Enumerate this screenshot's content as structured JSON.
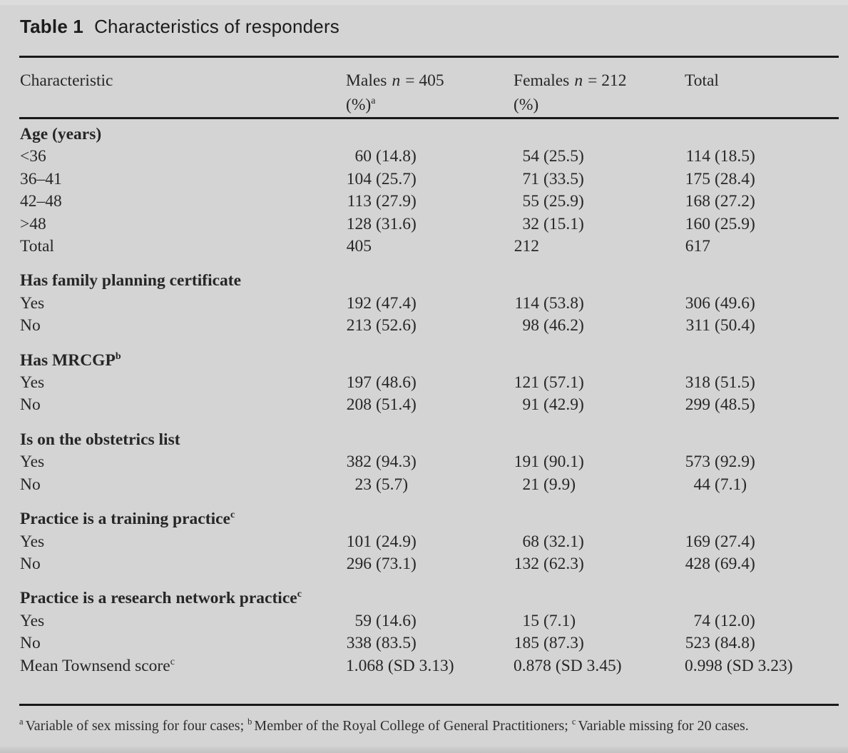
{
  "colors": {
    "background": "#d4d4d4",
    "text": "#262626",
    "rule": "#191919"
  },
  "title": {
    "label": "Table 1",
    "text": "Characteristics of responders"
  },
  "table": {
    "columns": {
      "characteristic": {
        "label": "Characteristic"
      },
      "males": {
        "name": "Males",
        "var": "n",
        "value": "= 405",
        "unit": "(%)",
        "sup": "a"
      },
      "females": {
        "name": "Females",
        "var": "n",
        "value": "= 212",
        "unit": "(%)",
        "sup": ""
      },
      "total": {
        "label": "Total"
      }
    },
    "sections": [
      {
        "heading": "Age (years)",
        "sup": "",
        "rows": [
          {
            "label": "<36",
            "sup": "",
            "cells": [
              {
                "n": "60",
                "pct": "(14.8)"
              },
              {
                "n": "54",
                "pct": "(25.5)"
              },
              {
                "n": "114",
                "pct": "(18.5)"
              }
            ]
          },
          {
            "label": "36–41",
            "sup": "",
            "cells": [
              {
                "n": "104",
                "pct": "(25.7)"
              },
              {
                "n": "71",
                "pct": "(33.5)"
              },
              {
                "n": "175",
                "pct": "(28.4)"
              }
            ]
          },
          {
            "label": "42–48",
            "sup": "",
            "cells": [
              {
                "n": "113",
                "pct": "(27.9)"
              },
              {
                "n": "55",
                "pct": "(25.9)"
              },
              {
                "n": "168",
                "pct": "(27.2)"
              }
            ]
          },
          {
            "label": ">48",
            "sup": "",
            "cells": [
              {
                "n": "128",
                "pct": "(31.6)"
              },
              {
                "n": "32",
                "pct": "(15.1)"
              },
              {
                "n": "160",
                "pct": "(25.9)"
              }
            ]
          },
          {
            "label": "Total",
            "sup": "",
            "cells": [
              {
                "n": "405",
                "pct": ""
              },
              {
                "n": "212",
                "pct": ""
              },
              {
                "n": "617",
                "pct": ""
              }
            ]
          }
        ]
      },
      {
        "heading": "Has family planning certificate",
        "sup": "",
        "rows": [
          {
            "label": "Yes",
            "sup": "",
            "cells": [
              {
                "n": "192",
                "pct": "(47.4)"
              },
              {
                "n": "114",
                "pct": "(53.8)"
              },
              {
                "n": "306",
                "pct": "(49.6)"
              }
            ]
          },
          {
            "label": "No",
            "sup": "",
            "cells": [
              {
                "n": "213",
                "pct": "(52.6)"
              },
              {
                "n": "98",
                "pct": "(46.2)"
              },
              {
                "n": "311",
                "pct": "(50.4)"
              }
            ]
          }
        ]
      },
      {
        "heading": "Has MRCGP",
        "sup": "b",
        "rows": [
          {
            "label": "Yes",
            "sup": "",
            "cells": [
              {
                "n": "197",
                "pct": "(48.6)"
              },
              {
                "n": "121",
                "pct": "(57.1)"
              },
              {
                "n": "318",
                "pct": "(51.5)"
              }
            ]
          },
          {
            "label": "No",
            "sup": "",
            "cells": [
              {
                "n": "208",
                "pct": "(51.4)"
              },
              {
                "n": "91",
                "pct": "(42.9)"
              },
              {
                "n": "299",
                "pct": "(48.5)"
              }
            ]
          }
        ]
      },
      {
        "heading": "Is on the obstetrics list",
        "sup": "",
        "rows": [
          {
            "label": "Yes",
            "sup": "",
            "cells": [
              {
                "n": "382",
                "pct": "(94.3)"
              },
              {
                "n": "191",
                "pct": "(90.1)"
              },
              {
                "n": "573",
                "pct": "(92.9)"
              }
            ]
          },
          {
            "label": "No",
            "sup": "",
            "cells": [
              {
                "n": "23",
                "pct": "(5.7)"
              },
              {
                "n": "21",
                "pct": "(9.9)"
              },
              {
                "n": "44",
                "pct": "(7.1)"
              }
            ]
          }
        ]
      },
      {
        "heading": "Practice is a training practice",
        "sup": "c",
        "rows": [
          {
            "label": "Yes",
            "sup": "",
            "cells": [
              {
                "n": "101",
                "pct": "(24.9)"
              },
              {
                "n": "68",
                "pct": "(32.1)"
              },
              {
                "n": "169",
                "pct": "(27.4)"
              }
            ]
          },
          {
            "label": "No",
            "sup": "",
            "cells": [
              {
                "n": "296",
                "pct": "(73.1)"
              },
              {
                "n": "132",
                "pct": "(62.3)"
              },
              {
                "n": "428",
                "pct": "(69.4)"
              }
            ]
          }
        ]
      },
      {
        "heading": "Practice is a research network practice",
        "sup": "c",
        "rows": [
          {
            "label": "Yes",
            "sup": "",
            "cells": [
              {
                "n": "59",
                "pct": "(14.6)"
              },
              {
                "n": "15",
                "pct": "(7.1)"
              },
              {
                "n": "74",
                "pct": "(12.0)"
              }
            ]
          },
          {
            "label": "No",
            "sup": "",
            "cells": [
              {
                "n": "338",
                "pct": "(83.5)"
              },
              {
                "n": "185",
                "pct": "(87.3)"
              },
              {
                "n": "523",
                "pct": "(84.8)"
              }
            ]
          },
          {
            "label": "Mean Townsend score",
            "sup": "c",
            "cells": [
              {
                "n": "1.068",
                "pct": "(SD 3.13)"
              },
              {
                "n": "0.878",
                "pct": "(SD 3.45)"
              },
              {
                "n": "0.998",
                "pct": "(SD 3.23)"
              }
            ]
          }
        ]
      }
    ]
  },
  "footnote": {
    "parts": [
      {
        "sup": "a",
        "text": "Variable of sex missing for four cases; "
      },
      {
        "sup": "b",
        "text": "Member of the Royal College of General Practitioners; "
      },
      {
        "sup": "c",
        "text": "Variable missing for 20 cases."
      }
    ]
  }
}
